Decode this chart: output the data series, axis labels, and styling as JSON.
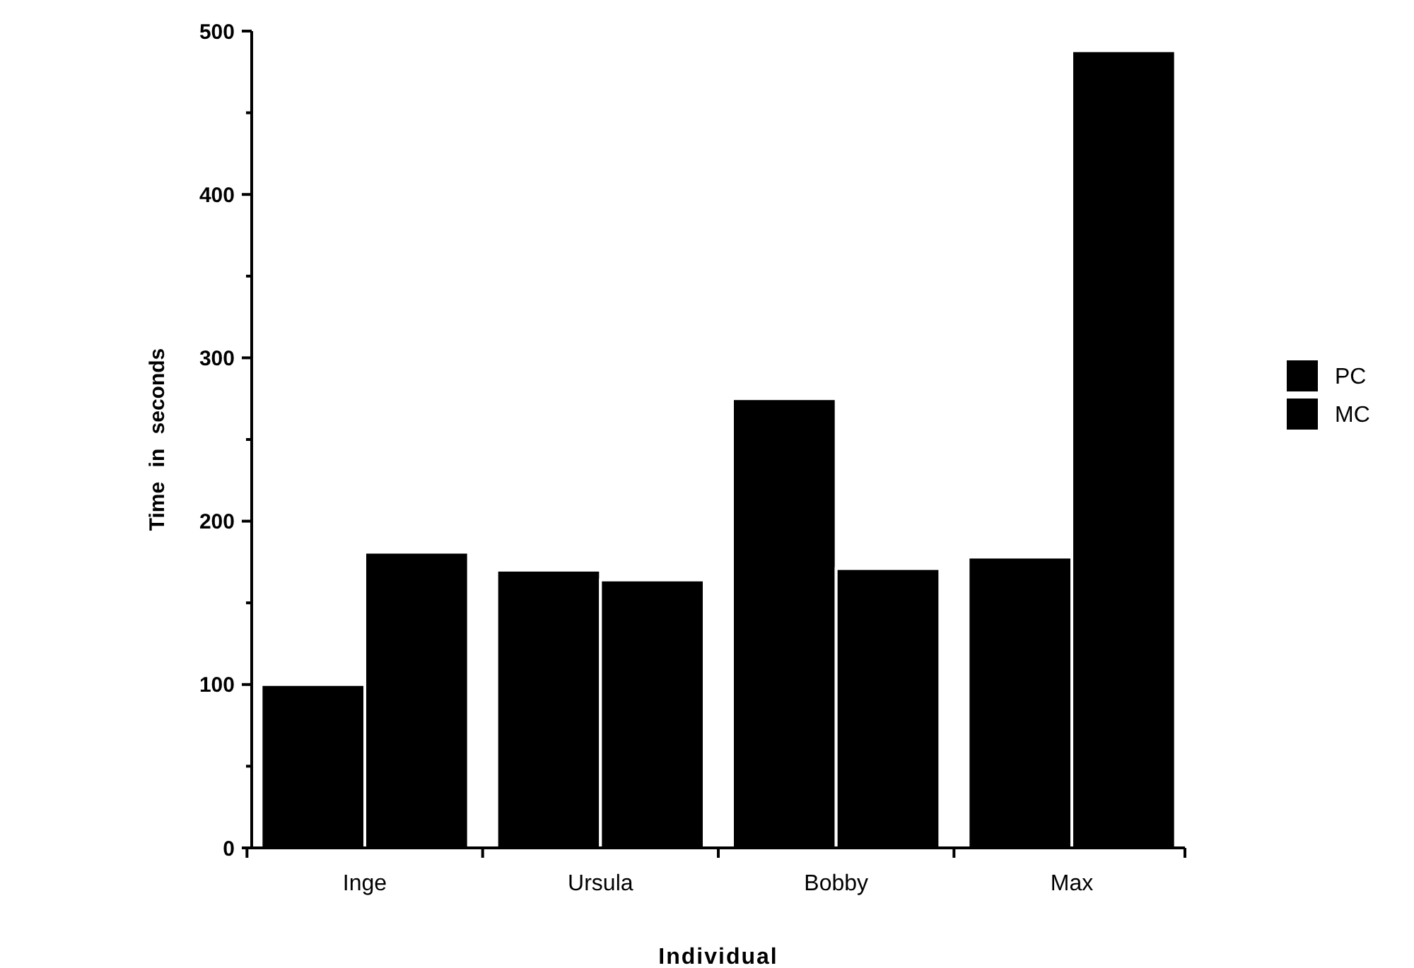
{
  "chart_data": {
    "type": "bar",
    "xlabel": "Individual",
    "ylabel": "Time in seconds",
    "categories": [
      "Inge",
      "Ursula",
      "Bobby",
      "Max"
    ],
    "series": [
      {
        "name": "PC",
        "color": "#000000",
        "values": [
          100,
          170,
          275,
          178
        ]
      },
      {
        "name": "MC",
        "color": "#000000",
        "values": [
          181,
          164,
          171,
          488
        ]
      }
    ],
    "ylim": [
      0,
      500
    ],
    "yticks": [
      0,
      {
        "value": 50,
        "label": null
      },
      100,
      {
        "value": 150,
        "label": null
      },
      200,
      {
        "value": 250,
        "label": null
      },
      300,
      {
        "value": 350,
        "label": null
      },
      400,
      {
        "value": 450,
        "label": null
      },
      500
    ],
    "legend": "right",
    "grid": false
  }
}
